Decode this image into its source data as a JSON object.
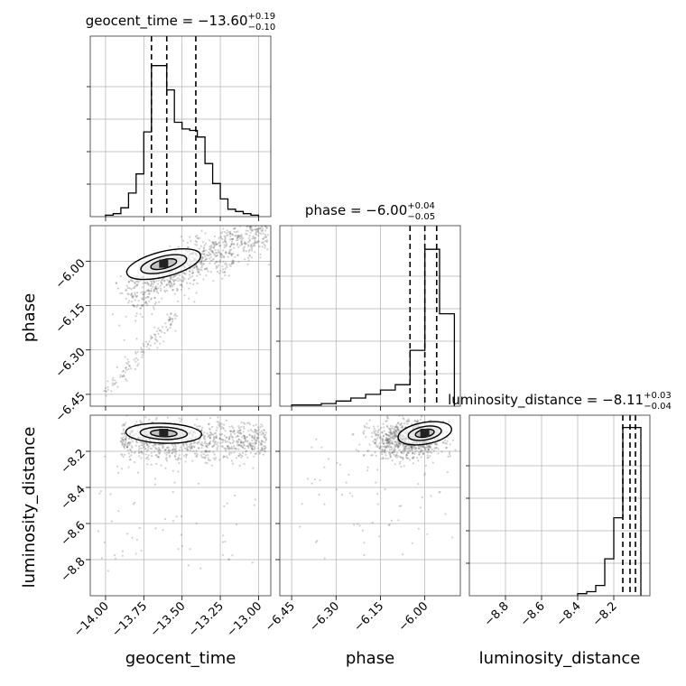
{
  "chart_data": [
    {
      "type": "histogram",
      "title": {
        "text": "geocent_time = −13.60",
        "sup": "+0.19",
        "sub": "−0.10"
      },
      "x_param": "geocent_time",
      "xlim": [
        -14.1,
        -12.92
      ],
      "ylim": [
        0,
        0.245
      ],
      "bin_edges": [
        -14.0,
        -13.95,
        -13.9,
        -13.85,
        -13.8,
        -13.75,
        -13.7,
        -13.65,
        -13.6,
        -13.55,
        -13.5,
        -13.45,
        -13.4,
        -13.35,
        -13.3,
        -13.25,
        -13.2,
        -13.15,
        -13.1,
        -13.05,
        -13.0
      ],
      "counts": [
        0.002,
        0.004,
        0.012,
        0.032,
        0.058,
        0.115,
        0.205,
        0.205,
        0.172,
        0.128,
        0.119,
        0.117,
        0.108,
        0.072,
        0.045,
        0.024,
        0.01,
        0.007,
        0.004,
        0.002
      ],
      "quantiles": [
        -13.7,
        -13.6,
        -13.41
      ],
      "grid": true
    },
    {
      "type": "histogram",
      "title": {
        "text": "phase = −6.00",
        "sup": "+0.04",
        "sub": "−0.05"
      },
      "x_param": "phase",
      "xlim": [
        -6.49,
        -5.88
      ],
      "ylim": [
        0,
        0.84
      ],
      "bin_edges": [
        -6.45,
        -6.4,
        -6.35,
        -6.3,
        -6.25,
        -6.2,
        -6.15,
        -6.1,
        -6.05,
        -6.0,
        -5.95,
        -5.9
      ],
      "counts": [
        0.006,
        0.006,
        0.012,
        0.024,
        0.038,
        0.055,
        0.075,
        0.1,
        0.26,
        0.73,
        0.43
      ],
      "quantiles": [
        -6.05,
        -6.0,
        -5.96
      ],
      "grid": true
    },
    {
      "type": "histogram",
      "title": {
        "text": "luminosity_distance = −8.11",
        "sup": "+0.03",
        "sub": "−0.04"
      },
      "x_param": "luminosity_distance",
      "xlim": [
        -9.0,
        -8.0
      ],
      "ylim": [
        0,
        0.88
      ],
      "bin_edges": [
        -8.4,
        -8.35,
        -8.3,
        -8.25,
        -8.2,
        -8.15,
        -8.1,
        -8.05
      ],
      "counts": [
        0.01,
        0.02,
        0.05,
        0.18,
        0.38,
        0.82,
        0.82
      ],
      "quantiles": [
        -8.15,
        -8.11,
        -8.08
      ],
      "grid": true
    },
    {
      "type": "scatter",
      "x_param": "geocent_time",
      "y_param": "phase",
      "xlim": [
        -14.1,
        -12.92
      ],
      "ylim": [
        -6.49,
        -5.88
      ],
      "features": [
        "density contours",
        "correlated band",
        "faint tail toward (-14.0, -6.45)"
      ]
    },
    {
      "type": "scatter",
      "x_param": "geocent_time",
      "y_param": "luminosity_distance",
      "xlim": [
        -14.1,
        -12.92
      ],
      "ylim": [
        -9.0,
        -8.0
      ],
      "features": [
        "density contours",
        "horizontal band near -8.11"
      ]
    },
    {
      "type": "scatter",
      "x_param": "phase",
      "y_param": "luminosity_distance",
      "xlim": [
        -6.49,
        -5.88
      ],
      "ylim": [
        -9.0,
        -8.0
      ],
      "features": [
        "density contours",
        "concentration near phase -6.0"
      ]
    }
  ],
  "axes": {
    "geocent_time": {
      "label": "geocent_time",
      "ticks": [
        {
          "v": -14.0,
          "label": "−14.00"
        },
        {
          "v": -13.75,
          "label": "−13.75"
        },
        {
          "v": -13.5,
          "label": "−13.50"
        },
        {
          "v": -13.25,
          "label": "−13.25"
        },
        {
          "v": -13.0,
          "label": "−13.00"
        }
      ]
    },
    "phase": {
      "label": "phase",
      "ticks": [
        {
          "v": -6.45,
          "label": "−6.45"
        },
        {
          "v": -6.3,
          "label": "−6.30"
        },
        {
          "v": -6.15,
          "label": "−6.15"
        },
        {
          "v": -6.0,
          "label": "−6.00"
        }
      ]
    },
    "luminosity_distance": {
      "label": "luminosity_distance",
      "ticks": [
        {
          "v": -8.8,
          "label": "−8.8"
        },
        {
          "v": -8.6,
          "label": "−8.6"
        },
        {
          "v": -8.4,
          "label": "−8.4"
        },
        {
          "v": -8.2,
          "label": "−8.2"
        }
      ]
    }
  },
  "style": {
    "line_color": "#000000",
    "grid_color": "#b0b0b0",
    "point_color": "#555555"
  }
}
